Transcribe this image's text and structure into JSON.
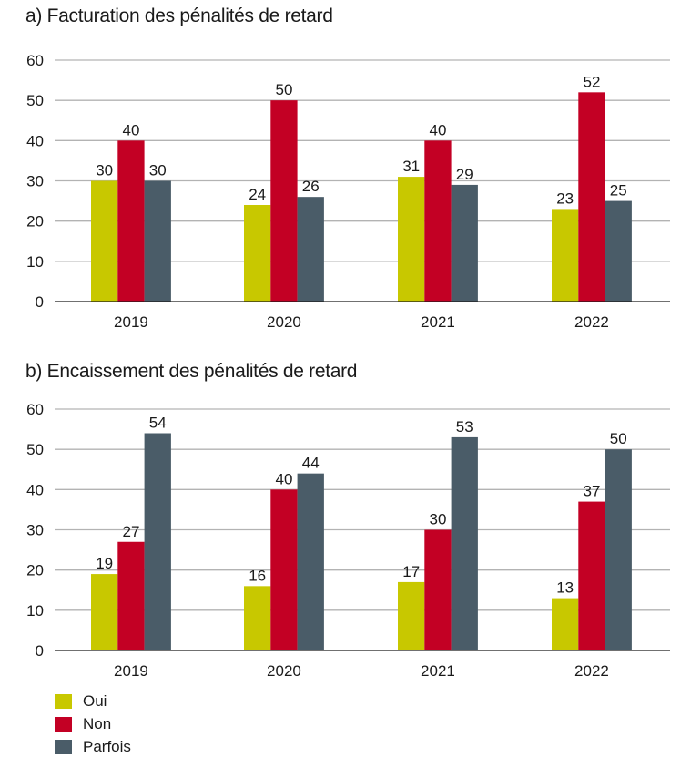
{
  "chart_data": [
    {
      "type": "bar",
      "title": "a)  Facturation des pénalités de retard",
      "categories": [
        "2019",
        "2020",
        "2021",
        "2022"
      ],
      "series": [
        {
          "name": "Oui",
          "color": "#c8c800",
          "values": [
            30,
            24,
            31,
            23
          ]
        },
        {
          "name": "Non",
          "color": "#c30024",
          "values": [
            40,
            50,
            40,
            52
          ]
        },
        {
          "name": "Parfois",
          "color": "#4a5c68",
          "values": [
            30,
            26,
            29,
            25
          ]
        }
      ],
      "xlabel": "",
      "ylabel": "",
      "ylim": [
        0,
        60
      ],
      "yticks": [
        0,
        10,
        20,
        30,
        40,
        50,
        60
      ],
      "grid": true
    },
    {
      "type": "bar",
      "title": "b)  Encaissement des pénalités de retard",
      "categories": [
        "2019",
        "2020",
        "2021",
        "2022"
      ],
      "series": [
        {
          "name": "Oui",
          "color": "#c8c800",
          "values": [
            19,
            16,
            17,
            13
          ]
        },
        {
          "name": "Non",
          "color": "#c30024",
          "values": [
            27,
            40,
            30,
            37
          ]
        },
        {
          "name": "Parfois",
          "color": "#4a5c68",
          "values": [
            54,
            44,
            53,
            50
          ]
        }
      ],
      "xlabel": "",
      "ylabel": "",
      "ylim": [
        0,
        60
      ],
      "yticks": [
        0,
        10,
        20,
        30,
        40,
        50,
        60
      ],
      "grid": true
    }
  ],
  "legend": {
    "placement": "bottom-left",
    "items": [
      {
        "label": "Oui",
        "color": "#c8c800"
      },
      {
        "label": "Non",
        "color": "#c30024"
      },
      {
        "label": "Parfois",
        "color": "#4a5c68"
      }
    ]
  }
}
